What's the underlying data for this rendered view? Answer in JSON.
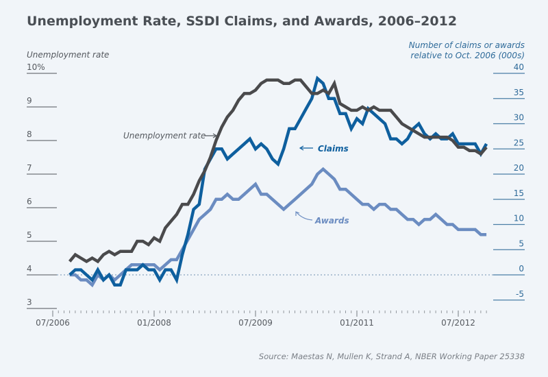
{
  "chart_data": {
    "type": "line",
    "title": "Unemployment Rate, SSDI Claims, and Awards, 2006–2012",
    "source": "Source: Maestas N, Mullen K, Strand A, NBER Working Paper 25338",
    "x_start": "10/2006",
    "x_frequency": "monthly",
    "x_ticks": [
      "07/2006",
      "01/2008",
      "07/2009",
      "01/2011",
      "07/2012"
    ],
    "left_axis": {
      "label": "Unemployment rate",
      "ylim": [
        3,
        10
      ],
      "ticks": [
        "10%",
        "9",
        "8",
        "7",
        "6",
        "5",
        "4",
        "3"
      ],
      "tick_values": [
        10,
        9,
        8,
        7,
        6,
        5,
        4,
        3
      ]
    },
    "right_axis": {
      "label_line1": "Number of claims or awards",
      "label_line2": "relative to Oct. 2006 (000s)",
      "ylim": [
        -6.5,
        40
      ],
      "ticks": [
        "40",
        "35",
        "30",
        "25",
        "20",
        "15",
        "10",
        "5",
        "0",
        "-5"
      ],
      "tick_values": [
        40,
        35,
        30,
        25,
        20,
        15,
        10,
        5,
        0,
        -5
      ]
    },
    "reference_line": {
      "axis": "right",
      "value": 0,
      "style": "dotted"
    },
    "series": [
      {
        "name": "Unemployment rate",
        "axis": "left",
        "color": "#4a4a4c",
        "annotation": "Unemployment rate",
        "values": [
          4.4,
          4.6,
          4.5,
          4.4,
          4.5,
          4.4,
          4.6,
          4.7,
          4.6,
          4.7,
          4.7,
          4.7,
          5.0,
          5.0,
          4.9,
          5.1,
          5.0,
          5.4,
          5.6,
          5.8,
          6.1,
          6.1,
          6.4,
          6.8,
          7.1,
          7.5,
          8.0,
          8.4,
          8.7,
          8.9,
          9.2,
          9.4,
          9.4,
          9.5,
          9.7,
          9.8,
          9.8,
          9.8,
          9.7,
          9.7,
          9.8,
          9.8,
          9.6,
          9.4,
          9.4,
          9.5,
          9.4,
          9.7,
          9.1,
          9.0,
          8.9,
          8.9,
          9.0,
          8.9,
          9.0,
          8.9,
          8.9,
          8.9,
          8.7,
          8.5,
          8.4,
          8.3,
          8.2,
          8.1,
          8.1,
          8.1,
          8.1,
          8.1,
          8.0,
          7.8,
          7.8,
          7.7,
          7.7,
          7.6,
          7.8
        ]
      },
      {
        "name": "Claims",
        "axis": "right",
        "color": "#0e5f9e",
        "annotation": "Claims",
        "values": [
          0,
          1,
          1,
          0,
          -1,
          1,
          -1,
          0,
          -2,
          -2,
          1,
          1,
          1,
          2,
          1,
          1,
          -1,
          1,
          1,
          -1,
          4,
          8,
          13,
          14,
          21,
          23,
          25,
          25,
          23,
          24,
          25,
          26,
          27,
          25,
          26,
          25,
          23,
          22,
          25,
          29,
          29,
          31,
          33,
          35,
          39,
          38,
          35,
          35,
          32,
          32,
          29,
          31,
          30,
          33,
          32,
          31,
          30,
          27,
          27,
          26,
          27,
          29,
          30,
          28,
          27,
          28,
          27,
          27,
          28,
          26,
          26,
          26,
          26,
          24,
          26
        ]
      },
      {
        "name": "Awards",
        "axis": "right",
        "color": "#6b8cc1",
        "annotation": "Awards",
        "values": [
          0,
          0,
          -1,
          -1,
          -2,
          0,
          -1,
          0,
          -1,
          0,
          1,
          2,
          2,
          2,
          2,
          2,
          1,
          2,
          3,
          3,
          5,
          7,
          9,
          11,
          12,
          13,
          15,
          15,
          16,
          15,
          15,
          16,
          17,
          18,
          16,
          16,
          15,
          14,
          13,
          14,
          15,
          16,
          17,
          18,
          20,
          21,
          20,
          19,
          17,
          17,
          16,
          15,
          14,
          14,
          13,
          14,
          14,
          13,
          13,
          12,
          11,
          11,
          10,
          11,
          11,
          12,
          11,
          10,
          10,
          9,
          9,
          9,
          9,
          8,
          8
        ]
      }
    ]
  }
}
